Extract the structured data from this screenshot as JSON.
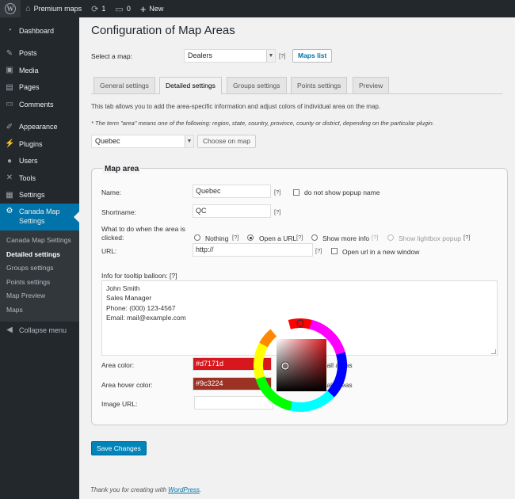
{
  "adminbar": {
    "site_name": "Premium maps",
    "updates_count": "1",
    "comments_count": "0",
    "new_label": "New"
  },
  "sidebar": {
    "items": [
      {
        "label": "Dashboard",
        "icon": "dashboard-icon"
      },
      {
        "label": "Posts",
        "icon": "pin-icon"
      },
      {
        "label": "Media",
        "icon": "media-icon"
      },
      {
        "label": "Pages",
        "icon": "pages-icon"
      },
      {
        "label": "Comments",
        "icon": "comment-icon"
      },
      {
        "label": "Appearance",
        "icon": "brush-icon"
      },
      {
        "label": "Plugins",
        "icon": "plugin-icon"
      },
      {
        "label": "Users",
        "icon": "user-icon"
      },
      {
        "label": "Tools",
        "icon": "wrench-icon"
      },
      {
        "label": "Settings",
        "icon": "settings-icon"
      },
      {
        "label": "Canada Map\nSettings",
        "icon": "gear-icon"
      }
    ],
    "submenu": [
      "Canada Map Settings",
      "Detailed settings",
      "Groups settings",
      "Points settings",
      "Map Preview",
      "Maps"
    ],
    "collapse_label": "Collapse menu"
  },
  "page": {
    "title": "Configuration of Map Areas",
    "select_map_label": "Select a map:",
    "selected_map": "Dealers",
    "help": "[?]",
    "maps_list_button": "Maps list",
    "tabs": [
      "General settings",
      "Detailed settings",
      "Groups settings",
      "Points settings",
      "Preview"
    ],
    "intro": "This tab allows you to add the area-specific information and adjust colors of individual area on the map.",
    "note": "* The term \"area\" means one of the following: region, state, country, province, county or district, depending on the particular plugin.",
    "selected_area": "Quebec",
    "choose_on_map_button": "Choose on map"
  },
  "map_area": {
    "title": "Map area",
    "name_label": "Name:",
    "name_value": "Quebec",
    "no_popup_label": "do not show popup name",
    "shortname_label": "Shortname:",
    "shortname_value": "QC",
    "click_label": "What to do when the area is clicked:",
    "options": [
      "Nothing",
      "Open a URL",
      "Show more info",
      "Show lightbox popup"
    ],
    "url_label": "URL:",
    "url_value": "http://",
    "new_window_label": "Open url in a new window",
    "tooltip_label": "Info for tooltip balloon: [?]",
    "tooltip_lines": [
      "John Smith",
      "Sales Manager",
      "Phone: (000) 123-4567",
      "Email: mail@example.com"
    ],
    "area_color_label": "Area color:",
    "area_color_value": "#d7171d",
    "hover_color_label": "Area hover color:",
    "hover_color_value": "#9c3224",
    "apply_all_text": "to all areas",
    "image_url_label": "Image URL:"
  },
  "save_button": "Save Changes",
  "footer": {
    "prefix": "Thank you for creating with ",
    "link": "WordPress",
    "suffix": "."
  },
  "colors": {
    "accent": "#0073aa",
    "save_button": "#0085ba",
    "area_color": "#d7171d",
    "hover_color": "#9c3224"
  }
}
